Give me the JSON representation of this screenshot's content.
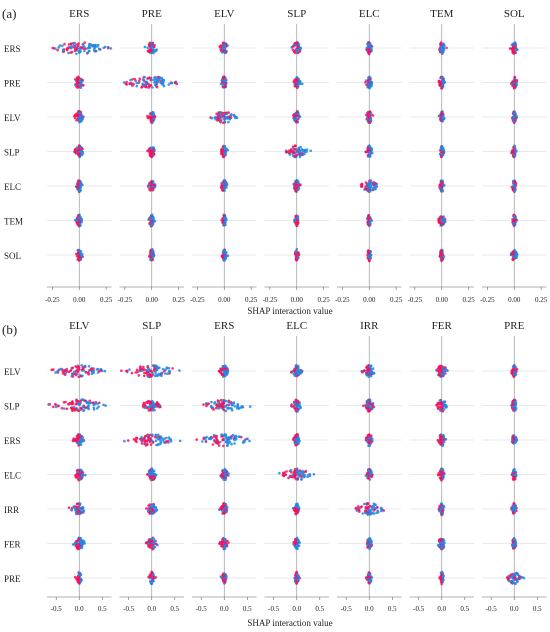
{
  "colors": {
    "high": "#ff0d57",
    "low": "#1e88e5",
    "grid": "#d6d6d6",
    "zero": "#999999"
  },
  "chart_data": [
    {
      "type": "scatter",
      "panel_label": "(a)",
      "columns": [
        "ERS",
        "PRE",
        "ELV",
        "SLP",
        "ELC",
        "TEM",
        "SOL"
      ],
      "rows": [
        "ERS",
        "PRE",
        "ELV",
        "SLP",
        "ELC",
        "TEM",
        "SOL"
      ],
      "xlabel": "SHAP interaction value",
      "xlim": [
        -0.3,
        0.3
      ],
      "xticks": [
        -0.25,
        0.0,
        0.25
      ],
      "xtick_labels": [
        "-0.25",
        "0.00",
        "0.25"
      ],
      "grid": "horizontal",
      "spread": [
        [
          0.25,
          0.05,
          0.04,
          0.04,
          0.03,
          0.03,
          0.03
        ],
        [
          0.05,
          0.25,
          0.03,
          0.03,
          0.03,
          0.03,
          0.03
        ],
        [
          0.04,
          0.03,
          0.12,
          0.03,
          0.03,
          0.02,
          0.02
        ],
        [
          0.04,
          0.03,
          0.03,
          0.1,
          0.03,
          0.02,
          0.02
        ],
        [
          0.03,
          0.03,
          0.03,
          0.03,
          0.08,
          0.02,
          0.02
        ],
        [
          0.03,
          0.03,
          0.02,
          0.02,
          0.02,
          0.03,
          0.02
        ],
        [
          0.03,
          0.03,
          0.02,
          0.02,
          0.02,
          0.02,
          0.03
        ]
      ]
    },
    {
      "type": "scatter",
      "panel_label": "(b)",
      "columns": [
        "ELV",
        "SLP",
        "ERS",
        "ELC",
        "IRR",
        "FER",
        "PRE"
      ],
      "rows": [
        "ELV",
        "SLP",
        "ERS",
        "ELC",
        "IRR",
        "FER",
        "PRE"
      ],
      "xlabel": "SHAP interaction value",
      "xlim": [
        -0.7,
        0.7
      ],
      "xticks": [
        -0.5,
        0.0,
        0.5
      ],
      "xtick_labels": [
        "-0.5",
        "0.0",
        "0.5"
      ],
      "grid": "horizontal",
      "spread": [
        [
          0.5,
          0.55,
          0.1,
          0.1,
          0.15,
          0.12,
          0.06
        ],
        [
          0.55,
          0.2,
          0.45,
          0.1,
          0.1,
          0.12,
          0.06
        ],
        [
          0.1,
          0.45,
          0.5,
          0.08,
          0.08,
          0.08,
          0.05
        ],
        [
          0.1,
          0.1,
          0.08,
          0.3,
          0.06,
          0.06,
          0.05
        ],
        [
          0.15,
          0.1,
          0.08,
          0.06,
          0.3,
          0.06,
          0.05
        ],
        [
          0.12,
          0.12,
          0.08,
          0.06,
          0.06,
          0.08,
          0.05
        ],
        [
          0.06,
          0.06,
          0.05,
          0.05,
          0.05,
          0.05,
          0.15
        ]
      ]
    }
  ]
}
